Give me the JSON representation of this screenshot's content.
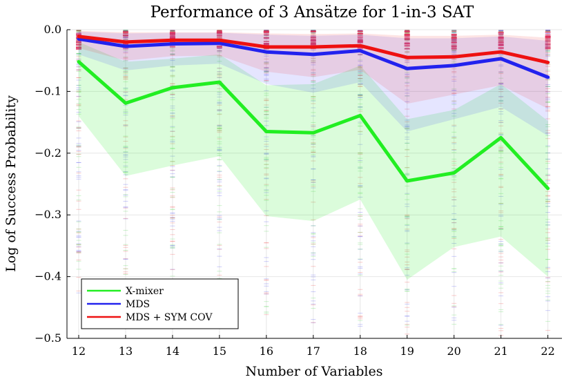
{
  "chart_data": {
    "type": "line",
    "title": "Performance of 3 Ansätze for 1-in-3 SAT",
    "xlabel": "Number of Variables",
    "ylabel": "Log of Success Probability",
    "x": [
      12,
      13,
      14,
      15,
      16,
      17,
      18,
      19,
      20,
      21,
      22
    ],
    "xlim": [
      11.75,
      22.3
    ],
    "ylim": [
      -0.5,
      0.0
    ],
    "yticks": [
      -0.5,
      -0.4,
      -0.3,
      -0.2,
      -0.1,
      0.0
    ],
    "ytick_labels": [
      "−0.5",
      "−0.4",
      "−0.3",
      "−0.2",
      "−0.1",
      "0.0"
    ],
    "xtick_labels": [
      "12",
      "13",
      "14",
      "15",
      "16",
      "17",
      "18",
      "19",
      "20",
      "21",
      "22"
    ],
    "grid": true,
    "legend_position": "bottom-left",
    "series": [
      {
        "name": "X-mixer",
        "color": "#22ee22",
        "values": [
          -0.052,
          -0.119,
          -0.094,
          -0.085,
          -0.165,
          -0.167,
          -0.139,
          -0.245,
          -0.232,
          -0.175,
          -0.257
        ],
        "band_lower": [
          -0.14,
          -0.237,
          -0.22,
          -0.205,
          -0.302,
          -0.31,
          -0.275,
          -0.405,
          -0.352,
          -0.335,
          -0.4
        ],
        "band_upper": [
          -0.02,
          -0.052,
          -0.047,
          -0.04,
          -0.09,
          -0.088,
          -0.058,
          -0.145,
          -0.13,
          -0.088,
          -0.148
        ]
      },
      {
        "name": "MDS",
        "color": "#2222ee",
        "values": [
          -0.015,
          -0.027,
          -0.023,
          -0.022,
          -0.036,
          -0.04,
          -0.034,
          -0.063,
          -0.058,
          -0.047,
          -0.077
        ],
        "band_lower": [
          -0.04,
          -0.066,
          -0.058,
          -0.055,
          -0.088,
          -0.102,
          -0.085,
          -0.165,
          -0.145,
          -0.125,
          -0.172
        ],
        "band_upper": [
          -0.003,
          -0.006,
          -0.005,
          -0.005,
          -0.008,
          -0.01,
          -0.008,
          -0.014,
          -0.014,
          -0.011,
          -0.018
        ]
      },
      {
        "name": "MDS + SYM COV",
        "color": "#ee1111",
        "values": [
          -0.011,
          -0.02,
          -0.017,
          -0.017,
          -0.028,
          -0.028,
          -0.026,
          -0.045,
          -0.044,
          -0.036,
          -0.053
        ],
        "band_lower": [
          -0.03,
          -0.05,
          -0.043,
          -0.042,
          -0.068,
          -0.077,
          -0.065,
          -0.12,
          -0.105,
          -0.09,
          -0.128
        ],
        "band_upper": [
          -0.002,
          -0.004,
          -0.004,
          -0.004,
          -0.006,
          -0.007,
          -0.006,
          -0.01,
          -0.01,
          -0.008,
          -0.013
        ]
      }
    ],
    "scatter_range": {
      "min": [
        -0.43,
        -0.47,
        -0.48,
        -0.45,
        -0.49,
        -0.49,
        -0.49,
        -0.5,
        -0.49,
        -0.5,
        -0.5
      ],
      "max": [
        -0.001,
        -0.001,
        -0.001,
        -0.001,
        -0.001,
        -0.001,
        -0.001,
        -0.001,
        -0.001,
        -0.001,
        -0.001
      ]
    }
  }
}
